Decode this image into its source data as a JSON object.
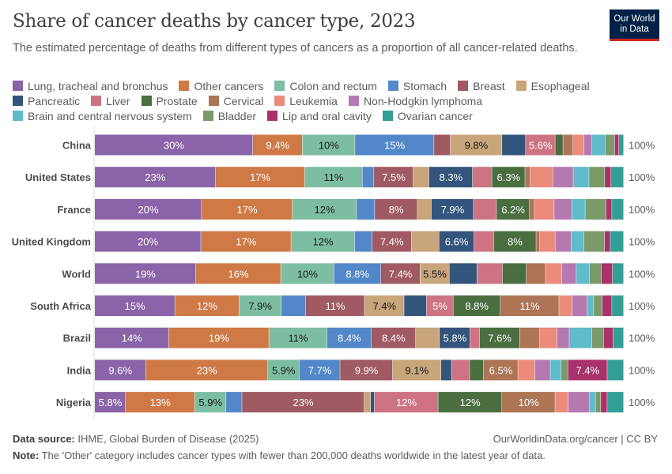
{
  "title": "Share of cancer deaths by cancer type, 2023",
  "subtitle": "The estimated percentage of deaths from different types of cancers as a proportion of all cancer-related deaths.",
  "logo": {
    "line1": "Our World",
    "line2": "in Data"
  },
  "footer": {
    "source_label": "Data source:",
    "source": "IHME, Global Burden of Disease (2025)",
    "url": "OurWorldinData.org/cancer | CC BY",
    "note_label": "Note:",
    "note": "The 'Other' category includes cancer types with fewer than 200,000 deaths worldwide in the latest year of data."
  },
  "chart_data": {
    "type": "bar",
    "orientation": "horizontal",
    "stacked": true,
    "unit": "%",
    "xlim": [
      0,
      100
    ],
    "grid": false,
    "legend_position": "top",
    "categories": [
      "China",
      "United States",
      "France",
      "United Kingdom",
      "World",
      "South Africa",
      "Brazil",
      "India",
      "Nigeria"
    ],
    "totals": [
      "100%",
      "100%",
      "100%",
      "100%",
      "100%",
      "100%",
      "100%",
      "100%",
      "100%"
    ],
    "series": [
      {
        "name": "Lung, tracheal and bronchus",
        "color": "#8a64a8",
        "dark_text": false,
        "values": [
          30,
          23,
          20,
          20,
          19,
          15,
          14,
          9.6,
          5.8
        ],
        "labels": [
          "30%",
          "23%",
          "20%",
          "20%",
          "19%",
          "15%",
          "14%",
          "9.6%",
          "5.8%"
        ]
      },
      {
        "name": "Other cancers",
        "color": "#cf7a46",
        "dark_text": false,
        "values": [
          9.4,
          17,
          17,
          17,
          16,
          12,
          19,
          23,
          13
        ],
        "labels": [
          "9.4%",
          "17%",
          "17%",
          "17%",
          "16%",
          "12%",
          "19%",
          "23%",
          "13%"
        ]
      },
      {
        "name": "Colon and rectum",
        "color": "#7dbea3",
        "dark_text": true,
        "values": [
          10,
          11,
          12,
          12,
          10,
          7.9,
          11,
          5.9,
          5.9
        ],
        "labels": [
          "10%",
          "11%",
          "12%",
          "12%",
          "10%",
          "7.9%",
          "11%",
          "5.9%",
          "5.9%"
        ]
      },
      {
        "name": "Stomach",
        "color": "#5288c9",
        "dark_text": false,
        "values": [
          15,
          2.2,
          3.4,
          3.3,
          8.8,
          4.6,
          8.4,
          7.7,
          3
        ],
        "labels": [
          "15%",
          "",
          "",
          "",
          "8.8%",
          "",
          "8.4%",
          "7.7%",
          ""
        ]
      },
      {
        "name": "Breast",
        "color": "#a05a63",
        "dark_text": false,
        "values": [
          3.1,
          7.5,
          8,
          7.4,
          7.4,
          11,
          8.4,
          9.9,
          23
        ],
        "labels": [
          "",
          "7.5%",
          "8%",
          "7.4%",
          "7.4%",
          "11%",
          "8.4%",
          "9.9%",
          "23%"
        ]
      },
      {
        "name": "Esophageal",
        "color": "#c9a57b",
        "dark_text": true,
        "values": [
          9.8,
          3,
          2.6,
          5.2,
          5.5,
          7.4,
          4.5,
          9.1,
          1.2
        ],
        "labels": [
          "9.8%",
          "",
          "",
          "",
          "5.5%",
          "7.4%",
          "",
          "9.1%",
          ""
        ]
      },
      {
        "name": "Pancreatic",
        "color": "#33557c",
        "dark_text": false,
        "values": [
          4.5,
          8.3,
          7.9,
          6.6,
          5.2,
          4.2,
          5.8,
          2,
          0.7
        ],
        "labels": [
          "",
          "8.3%",
          "7.9%",
          "6.6%",
          "",
          "",
          "5.8%",
          "",
          ""
        ]
      },
      {
        "name": "Liver",
        "color": "#cd7383",
        "dark_text": false,
        "values": [
          5.6,
          3.7,
          4.3,
          3.7,
          4.8,
          5,
          1.8,
          3.4,
          12
        ],
        "labels": [
          "5.6%",
          "",
          "",
          "",
          "",
          "5%",
          "",
          "",
          "12%"
        ]
      },
      {
        "name": "Prostate",
        "color": "#4a6e40",
        "dark_text": false,
        "values": [
          1.5,
          6.3,
          6.2,
          8,
          4.5,
          8.8,
          7.6,
          2.6,
          12
        ],
        "labels": [
          "",
          "6.3%",
          "6.2%",
          "8%",
          "",
          "8.8%",
          "7.6%",
          "",
          "12%"
        ]
      },
      {
        "name": "Cervical",
        "color": "#ad7456",
        "dark_text": false,
        "values": [
          1.9,
          1,
          0.9,
          0.7,
          3.6,
          11,
          3.8,
          6.5,
          10
        ],
        "labels": [
          "",
          "",
          "",
          "",
          "",
          "11%",
          "",
          "6.5%",
          "10%"
        ]
      },
      {
        "name": "Leukemia",
        "color": "#eb8b7c",
        "dark_text": false,
        "values": [
          2.1,
          4.3,
          3.7,
          2.9,
          3.1,
          2.5,
          3.3,
          3.2,
          2.5
        ],
        "labels": [
          "",
          "",
          "",
          "",
          "",
          "",
          "",
          "",
          ""
        ]
      },
      {
        "name": "Non-Hodgkin lymphoma",
        "color": "#b479b0",
        "dark_text": false,
        "values": [
          1.5,
          3.9,
          3.3,
          3,
          2.7,
          2.8,
          2.3,
          2.9,
          4
        ],
        "labels": [
          "",
          "",
          "",
          "",
          "",
          "",
          "",
          "",
          ""
        ]
      },
      {
        "name": "Brain and central nervous system",
        "color": "#60bbca",
        "dark_text": false,
        "values": [
          2.5,
          3,
          2.5,
          2.4,
          2.5,
          1.2,
          4.3,
          2,
          1.1
        ],
        "labels": [
          "",
          "",
          "",
          "",
          "",
          "",
          "",
          "",
          ""
        ]
      },
      {
        "name": "Bladder",
        "color": "#7b9a69",
        "dark_text": false,
        "values": [
          1.8,
          3,
          3.9,
          3.9,
          2.2,
          1.6,
          2.2,
          1.3,
          1
        ],
        "labels": [
          "",
          "",
          "",
          "",
          "",
          "",
          "",
          "",
          ""
        ]
      },
      {
        "name": "Lip and oral cavity",
        "color": "#a9326a",
        "dark_text": false,
        "values": [
          0.8,
          1.2,
          1.1,
          1.1,
          2.1,
          1.8,
          1.8,
          7.4,
          1.2
        ],
        "labels": [
          "",
          "",
          "",
          "",
          "",
          "",
          "",
          "7.4%",
          ""
        ]
      },
      {
        "name": "Ovarian cancer",
        "color": "#339e94",
        "dark_text": false,
        "values": [
          0.9,
          2.4,
          2.2,
          2.5,
          2.1,
          2.2,
          2,
          3.1,
          3.1
        ],
        "labels": [
          "",
          "",
          "",
          "",
          "",
          "",
          "",
          "",
          ""
        ]
      }
    ]
  }
}
